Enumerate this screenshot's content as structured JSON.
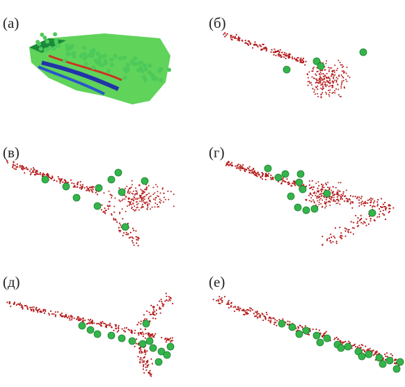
{
  "panels": [
    {
      "label": "(а)"
    },
    {
      "label": "(б)"
    },
    {
      "label": "(в)"
    },
    {
      "label": "(г)"
    },
    {
      "label": "(д)"
    },
    {
      "label": "(е)"
    }
  ]
}
